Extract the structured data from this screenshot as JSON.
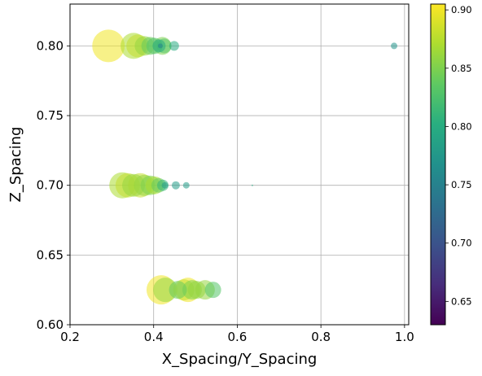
{
  "chart_data": {
    "type": "scatter",
    "title": "",
    "xlabel": "X_Spacing/Y_Spacing",
    "ylabel": "Z_Spacing",
    "xlim": [
      0.2,
      1.01
    ],
    "ylim": [
      0.6,
      0.83
    ],
    "x_ticks": [
      0.2,
      0.4,
      0.6,
      0.8,
      1.0
    ],
    "x_tick_labels": [
      "0.2",
      "0.4",
      "0.6",
      "0.8",
      "1.0"
    ],
    "y_ticks": [
      0.6,
      0.65,
      0.7,
      0.75,
      0.8
    ],
    "y_tick_labels": [
      "0.60",
      "0.65",
      "0.70",
      "0.75",
      "0.80"
    ],
    "grid": true,
    "colorbar": {
      "colormap": "viridis",
      "range": [
        0.63,
        0.905
      ],
      "ticks": [
        0.65,
        0.7,
        0.75,
        0.8,
        0.85,
        0.9
      ],
      "tick_labels": [
        "0.65",
        "0.70",
        "0.75",
        "0.80",
        "0.85",
        "0.90"
      ]
    },
    "points": [
      {
        "x": 0.292,
        "y": 0.8,
        "value": 0.9,
        "size": 20
      },
      {
        "x": 0.352,
        "y": 0.8,
        "value": 0.87,
        "size": 16
      },
      {
        "x": 0.362,
        "y": 0.8,
        "value": 0.88,
        "size": 14
      },
      {
        "x": 0.378,
        "y": 0.8,
        "value": 0.86,
        "size": 12
      },
      {
        "x": 0.392,
        "y": 0.8,
        "value": 0.84,
        "size": 11
      },
      {
        "x": 0.402,
        "y": 0.8,
        "value": 0.83,
        "size": 10
      },
      {
        "x": 0.413,
        "y": 0.8,
        "value": 0.8,
        "size": 8
      },
      {
        "x": 0.421,
        "y": 0.8,
        "value": 0.85,
        "size": 11
      },
      {
        "x": 0.425,
        "y": 0.8,
        "value": 0.83,
        "size": 9
      },
      {
        "x": 0.416,
        "y": 0.8,
        "value": 0.75,
        "size": 3
      },
      {
        "x": 0.449,
        "y": 0.8,
        "value": 0.8,
        "size": 6
      },
      {
        "x": 0.975,
        "y": 0.8,
        "value": 0.77,
        "size": 4
      },
      {
        "x": 0.325,
        "y": 0.7,
        "value": 0.87,
        "size": 16
      },
      {
        "x": 0.338,
        "y": 0.7,
        "value": 0.88,
        "size": 15
      },
      {
        "x": 0.352,
        "y": 0.7,
        "value": 0.86,
        "size": 14
      },
      {
        "x": 0.368,
        "y": 0.7,
        "value": 0.88,
        "size": 15
      },
      {
        "x": 0.378,
        "y": 0.7,
        "value": 0.86,
        "size": 13
      },
      {
        "x": 0.392,
        "y": 0.7,
        "value": 0.85,
        "size": 12
      },
      {
        "x": 0.402,
        "y": 0.7,
        "value": 0.87,
        "size": 11
      },
      {
        "x": 0.412,
        "y": 0.7,
        "value": 0.84,
        "size": 9
      },
      {
        "x": 0.422,
        "y": 0.7,
        "value": 0.81,
        "size": 7
      },
      {
        "x": 0.427,
        "y": 0.7,
        "value": 0.78,
        "size": 4
      },
      {
        "x": 0.453,
        "y": 0.7,
        "value": 0.78,
        "size": 5
      },
      {
        "x": 0.478,
        "y": 0.7,
        "value": 0.78,
        "size": 4
      },
      {
        "x": 0.636,
        "y": 0.7,
        "value": 0.8,
        "size": 1
      },
      {
        "x": 0.418,
        "y": 0.625,
        "value": 0.9,
        "size": 18
      },
      {
        "x": 0.428,
        "y": 0.625,
        "value": 0.86,
        "size": 15
      },
      {
        "x": 0.458,
        "y": 0.625,
        "value": 0.84,
        "size": 11
      },
      {
        "x": 0.472,
        "y": 0.625,
        "value": 0.88,
        "size": 13
      },
      {
        "x": 0.482,
        "y": 0.625,
        "value": 0.9,
        "size": 15
      },
      {
        "x": 0.492,
        "y": 0.625,
        "value": 0.85,
        "size": 12
      },
      {
        "x": 0.503,
        "y": 0.625,
        "value": 0.86,
        "size": 11
      },
      {
        "x": 0.523,
        "y": 0.625,
        "value": 0.86,
        "size": 12
      },
      {
        "x": 0.542,
        "y": 0.625,
        "value": 0.83,
        "size": 10
      }
    ]
  }
}
